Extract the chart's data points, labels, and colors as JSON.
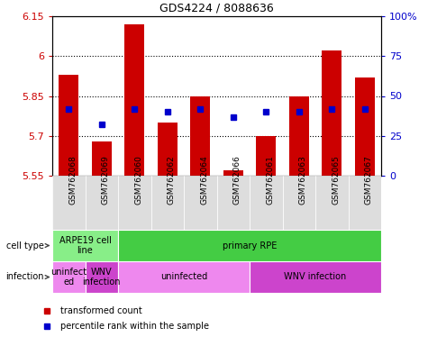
{
  "title": "GDS4224 / 8088636",
  "samples": [
    "GSM762068",
    "GSM762069",
    "GSM762060",
    "GSM762062",
    "GSM762064",
    "GSM762066",
    "GSM762061",
    "GSM762063",
    "GSM762065",
    "GSM762067"
  ],
  "transformed_count": [
    5.93,
    5.68,
    6.12,
    5.75,
    5.85,
    5.57,
    5.7,
    5.85,
    6.02,
    5.92
  ],
  "percentile_rank": [
    42,
    32,
    42,
    40,
    42,
    37,
    40,
    40,
    42,
    42
  ],
  "ylim": [
    5.55,
    6.15
  ],
  "yticks": [
    5.55,
    5.7,
    5.85,
    6.0,
    6.15
  ],
  "ytick_labels": [
    "5.55",
    "5.7",
    "5.85",
    "6",
    "6.15"
  ],
  "y2lim": [
    0,
    100
  ],
  "y2ticks": [
    0,
    25,
    50,
    75,
    100
  ],
  "y2tick_labels": [
    "0",
    "25",
    "50",
    "75",
    "100%"
  ],
  "bar_color": "#cc0000",
  "dot_color": "#0000cc",
  "bar_bottom": 5.55,
  "cell_type_groups": [
    {
      "label": "ARPE19 cell\nline",
      "start": 0,
      "end": 2,
      "color": "#88ee88"
    },
    {
      "label": "primary RPE",
      "start": 2,
      "end": 10,
      "color": "#44cc44"
    }
  ],
  "infection_groups": [
    {
      "label": "uninfect\ned",
      "start": 0,
      "end": 1,
      "color": "#ee88ee"
    },
    {
      "label": "WNV\ninfection",
      "start": 1,
      "end": 2,
      "color": "#cc44cc"
    },
    {
      "label": "uninfected",
      "start": 2,
      "end": 6,
      "color": "#ee88ee"
    },
    {
      "label": "WNV infection",
      "start": 6,
      "end": 10,
      "color": "#cc44cc"
    }
  ],
  "legend_items": [
    {
      "label": "transformed count",
      "color": "#cc0000"
    },
    {
      "label": "percentile rank within the sample",
      "color": "#0000cc"
    }
  ],
  "left_label_cell_type": "cell type",
  "left_label_infection": "infection",
  "tick_color_left": "#cc0000",
  "tick_color_right": "#0000cc",
  "bg_color": "#ffffff"
}
